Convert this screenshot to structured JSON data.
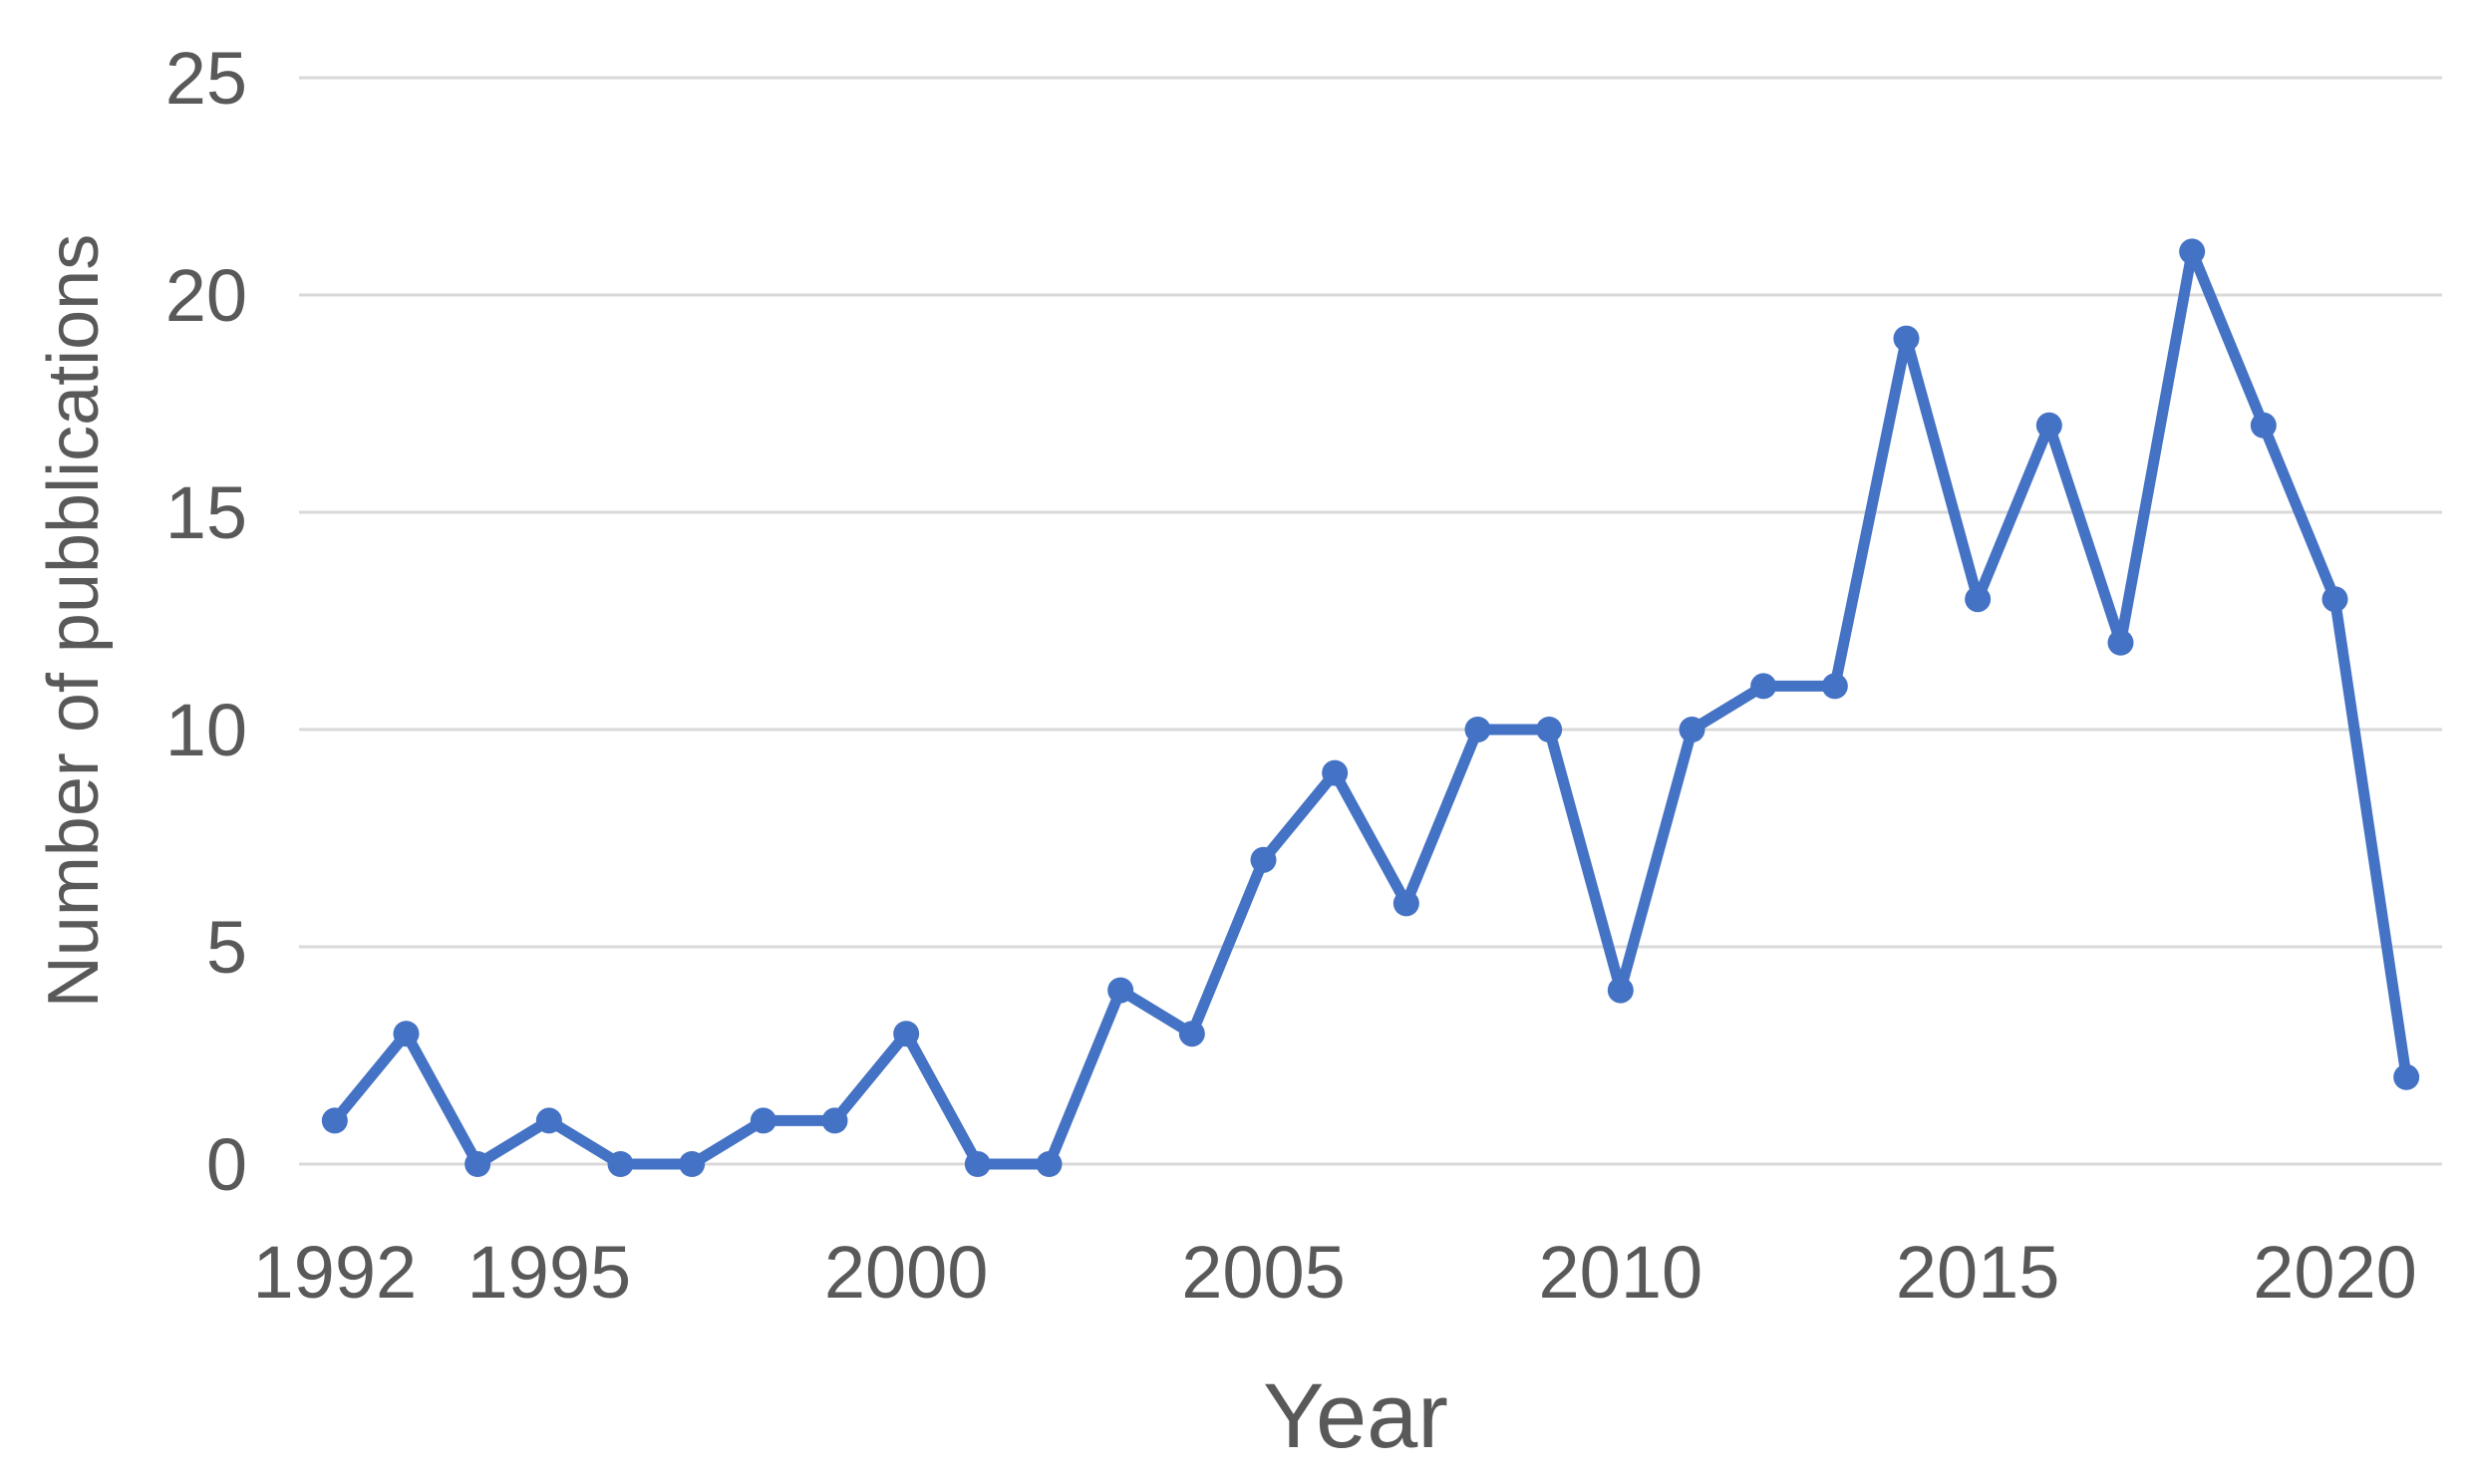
{
  "chart_data": {
    "type": "line",
    "title": "",
    "xlabel": "Year",
    "ylabel": "Number of pubblications",
    "x": [
      1992,
      1993,
      1994,
      1995,
      1996,
      1997,
      1998,
      1999,
      2000,
      2001,
      2002,
      2003,
      2004,
      2005,
      2006,
      2007,
      2008,
      2009,
      2010,
      2011,
      2012,
      2013,
      2014,
      2015,
      2016,
      2017,
      2018,
      2019,
      2020,
      2021
    ],
    "values": [
      1,
      3,
      0,
      1,
      0,
      0,
      1,
      1,
      3,
      0,
      0,
      4,
      3,
      7,
      9,
      6,
      10,
      10,
      4,
      10,
      11,
      11,
      19,
      13,
      17,
      12,
      21,
      17,
      13,
      2
    ],
    "ylim": [
      0,
      25
    ],
    "yticks": [
      0,
      5,
      10,
      15,
      20,
      25
    ],
    "xticks": [
      1992,
      1995,
      2000,
      2005,
      2010,
      2015,
      2020
    ],
    "grid": "horizontal-only",
    "legend": "none",
    "marker": "circle"
  },
  "colors": {
    "line": "#4472C4",
    "gridline": "#D9D9D9",
    "tick_text": "#595959",
    "axis_title_text": "#595959",
    "background": "#FFFFFF"
  }
}
